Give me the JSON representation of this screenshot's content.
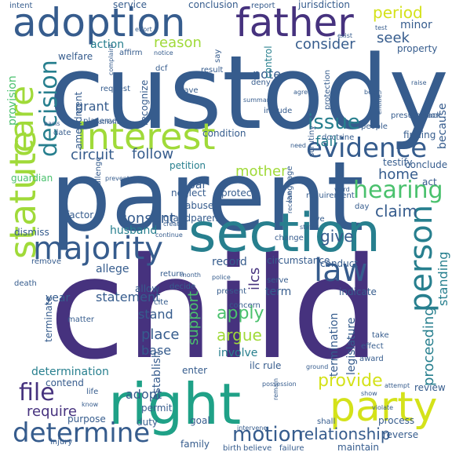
{
  "cloud": {
    "palette": {
      "purple": "#46327e",
      "navy": "#365c8d",
      "blue": "#277f8e",
      "teal": "#1fa187",
      "green": "#4ac16d",
      "lime": "#a0da39",
      "yellow": "#d4e21a"
    },
    "words": [
      {
        "text": "child",
        "color": "purple"
      },
      {
        "text": "custody",
        "color": "navy"
      },
      {
        "text": "parent",
        "color": "navy"
      },
      {
        "text": "right",
        "color": "teal"
      },
      {
        "text": "section",
        "color": "blue"
      },
      {
        "text": "adoption",
        "color": "navy"
      },
      {
        "text": "father",
        "color": "purple"
      },
      {
        "text": "interest",
        "color": "lime"
      },
      {
        "text": "statute",
        "color": "lime"
      },
      {
        "text": "care",
        "color": "lime"
      },
      {
        "text": "party",
        "color": "yellow"
      },
      {
        "text": "majority",
        "color": "navy"
      },
      {
        "text": "determine",
        "color": "navy"
      },
      {
        "text": "evidence",
        "color": "navy"
      },
      {
        "text": "decision",
        "color": "blue"
      },
      {
        "text": "person",
        "color": "blue"
      },
      {
        "text": "law",
        "color": "navy"
      },
      {
        "text": "file",
        "color": "purple"
      },
      {
        "text": "hearing",
        "color": "green"
      },
      {
        "text": "motion",
        "color": "navy"
      },
      {
        "text": "issue",
        "color": "blue"
      },
      {
        "text": "argue",
        "color": "lime"
      },
      {
        "text": "apply",
        "color": "green"
      },
      {
        "text": "provide",
        "color": "yellow"
      },
      {
        "text": "relationship",
        "color": "navy"
      },
      {
        "text": "period",
        "color": "yellow"
      },
      {
        "text": "claim",
        "color": "navy"
      },
      {
        "text": "place",
        "color": "navy"
      },
      {
        "text": "fail",
        "color": "blue"
      },
      {
        "text": "consider",
        "color": "navy"
      },
      {
        "text": "follow",
        "color": "navy"
      },
      {
        "text": "circuit",
        "color": "navy"
      },
      {
        "text": "reason",
        "color": "lime"
      },
      {
        "text": "home",
        "color": "navy"
      },
      {
        "text": "seek",
        "color": "navy"
      },
      {
        "text": "mother",
        "color": "lime"
      },
      {
        "text": "consent",
        "color": "navy"
      },
      {
        "text": "give",
        "color": "navy"
      },
      {
        "text": "require",
        "color": "purple"
      },
      {
        "text": "support",
        "color": "green"
      },
      {
        "text": "proceeding",
        "color": "blue"
      },
      {
        "text": "standing",
        "color": "blue"
      },
      {
        "text": "year",
        "color": "navy"
      },
      {
        "text": "adopt",
        "color": "navy"
      },
      {
        "text": "establish",
        "color": "navy"
      },
      {
        "text": "statement",
        "color": "navy"
      },
      {
        "text": "stand",
        "color": "navy"
      },
      {
        "text": "base",
        "color": "navy"
      },
      {
        "text": "determination",
        "color": "blue"
      },
      {
        "text": "grant",
        "color": "navy"
      },
      {
        "text": "note",
        "color": "navy"
      },
      {
        "text": "minor",
        "color": "navy"
      },
      {
        "text": "action",
        "color": "blue"
      },
      {
        "text": "termination",
        "color": "navy"
      },
      {
        "text": "legislature",
        "color": "navy"
      },
      {
        "text": "involve",
        "color": "blue"
      },
      {
        "text": "term",
        "color": "navy"
      },
      {
        "text": "testify",
        "color": "navy"
      },
      {
        "text": "conclude",
        "color": "navy"
      },
      {
        "text": "act",
        "color": "navy"
      },
      {
        "text": "because",
        "color": "navy"
      },
      {
        "text": "finding",
        "color": "navy"
      },
      {
        "text": "provision",
        "color": "green"
      },
      {
        "text": "amendment",
        "color": "navy"
      },
      {
        "text": "guardian",
        "color": "green"
      },
      {
        "text": "husband",
        "color": "blue"
      },
      {
        "text": "allege",
        "color": "navy"
      },
      {
        "text": "record",
        "color": "navy"
      },
      {
        "text": "circumstance",
        "color": "navy"
      },
      {
        "text": "conduct",
        "color": "navy"
      },
      {
        "text": "indicate",
        "color": "navy"
      },
      {
        "text": "purpose",
        "color": "navy"
      },
      {
        "text": "duty",
        "color": "navy"
      },
      {
        "text": "permit",
        "color": "navy"
      },
      {
        "text": "review",
        "color": "navy"
      },
      {
        "text": "process",
        "color": "navy"
      },
      {
        "text": "maintain",
        "color": "navy"
      },
      {
        "text": "family",
        "color": "navy"
      },
      {
        "text": "goal",
        "color": "navy"
      },
      {
        "text": "reverse",
        "color": "navy"
      },
      {
        "text": "contend",
        "color": "navy"
      },
      {
        "text": "petition",
        "color": "blue"
      },
      {
        "text": "condition",
        "color": "navy"
      },
      {
        "text": "protect",
        "color": "navy"
      },
      {
        "text": "neglect",
        "color": "navy"
      },
      {
        "text": "abuse",
        "color": "navy"
      },
      {
        "text": "grandparent",
        "color": "navy"
      },
      {
        "text": "dismiss",
        "color": "navy"
      },
      {
        "text": "factor",
        "color": "navy"
      },
      {
        "text": "terminate",
        "color": "navy"
      },
      {
        "text": "matter",
        "color": "navy"
      },
      {
        "text": "enter",
        "color": "navy"
      },
      {
        "text": "welfare",
        "color": "navy"
      },
      {
        "text": "service",
        "color": "navy"
      },
      {
        "text": "conclusion",
        "color": "navy"
      },
      {
        "text": "report",
        "color": "navy"
      },
      {
        "text": "jurisdiction",
        "color": "navy"
      },
      {
        "text": "property",
        "color": "navy"
      },
      {
        "text": "control",
        "color": "blue"
      },
      {
        "text": "recognize",
        "color": "navy"
      },
      {
        "text": "placement",
        "color": "navy"
      },
      {
        "text": "request",
        "color": "navy"
      },
      {
        "text": "result",
        "color": "navy"
      },
      {
        "text": "deny",
        "color": "navy"
      },
      {
        "text": "presumption",
        "color": "navy"
      },
      {
        "text": "doctrine",
        "color": "navy"
      },
      {
        "text": "people",
        "color": "navy"
      },
      {
        "text": "change",
        "color": "navy"
      },
      {
        "text": "live",
        "color": "navy"
      },
      {
        "text": "language",
        "color": "navy"
      },
      {
        "text": "prevent",
        "color": "navy"
      },
      {
        "text": "continue",
        "color": "navy"
      },
      {
        "text": "return",
        "color": "navy"
      },
      {
        "text": "decide",
        "color": "navy"
      },
      {
        "text": "allow",
        "color": "navy"
      },
      {
        "text": "present",
        "color": "navy"
      },
      {
        "text": "serve",
        "color": "navy"
      },
      {
        "text": "concern",
        "color": "navy"
      },
      {
        "text": "take",
        "color": "navy"
      },
      {
        "text": "award",
        "color": "navy"
      },
      {
        "text": "effect",
        "color": "navy"
      },
      {
        "text": "show",
        "color": "navy"
      },
      {
        "text": "attempt",
        "color": "navy"
      },
      {
        "text": "violate",
        "color": "navy"
      },
      {
        "text": "shall",
        "color": "navy"
      },
      {
        "text": "remain",
        "color": "navy"
      },
      {
        "text": "birth",
        "color": "navy"
      },
      {
        "text": "believe",
        "color": "navy"
      },
      {
        "text": "failure",
        "color": "navy"
      },
      {
        "text": "intervene",
        "color": "navy"
      },
      {
        "text": "injury",
        "color": "navy"
      },
      {
        "text": "know",
        "color": "navy"
      },
      {
        "text": "life",
        "color": "navy"
      },
      {
        "text": "create",
        "color": "navy"
      },
      {
        "text": "month",
        "color": "navy"
      },
      {
        "text": "cite",
        "color": "navy"
      },
      {
        "text": "police",
        "color": "navy"
      },
      {
        "text": "death",
        "color": "navy"
      },
      {
        "text": "remove",
        "color": "navy"
      },
      {
        "text": "status",
        "color": "navy"
      },
      {
        "text": "day",
        "color": "navy"
      },
      {
        "text": "ward",
        "color": "navy"
      },
      {
        "text": "need",
        "color": "navy"
      },
      {
        "text": "scrutiny",
        "color": "navy"
      },
      {
        "text": "requirement",
        "color": "navy"
      },
      {
        "text": "receive",
        "color": "navy"
      },
      {
        "text": "protection",
        "color": "navy"
      },
      {
        "text": "lack",
        "color": "navy"
      },
      {
        "text": "raise",
        "color": "navy"
      },
      {
        "text": "exist",
        "color": "navy"
      },
      {
        "text": "date",
        "color": "navy"
      },
      {
        "text": "basis",
        "color": "navy"
      },
      {
        "text": "include",
        "color": "navy"
      },
      {
        "text": "summary",
        "color": "navy"
      },
      {
        "text": "agree",
        "color": "navy"
      },
      {
        "text": "affirm",
        "color": "navy"
      },
      {
        "text": "notice",
        "color": "navy"
      },
      {
        "text": "complaint",
        "color": "navy"
      },
      {
        "text": "dcf",
        "color": "navy"
      },
      {
        "text": "say",
        "color": "navy"
      },
      {
        "text": "test",
        "color": "navy"
      },
      {
        "text": "intent",
        "color": "navy"
      },
      {
        "text": "effort",
        "color": "navy"
      },
      {
        "text": "ilcs",
        "color": "purple"
      },
      {
        "text": "ilc rule",
        "color": "navy"
      },
      {
        "text": "par",
        "color": "navy"
      },
      {
        "text": "ground",
        "color": "navy"
      },
      {
        "text": "challenge",
        "color": "navy"
      },
      {
        "text": "authority",
        "color": "navy"
      },
      {
        "text": "have",
        "color": "navy"
      },
      {
        "text": "entitle",
        "color": "navy"
      },
      {
        "text": "begin",
        "color": "navy"
      },
      {
        "text": "possession",
        "color": "navy"
      }
    ]
  }
}
